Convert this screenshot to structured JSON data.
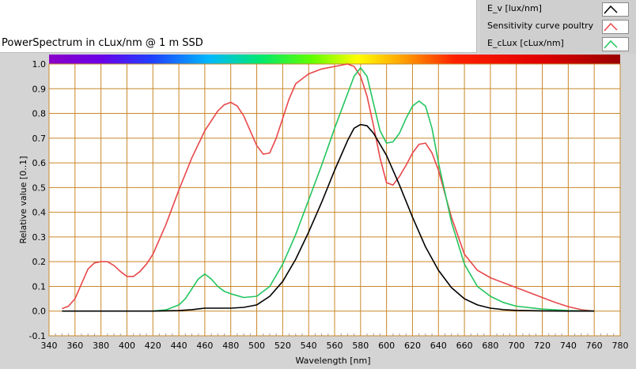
{
  "chart_data": {
    "type": "line",
    "title": "PowerSpectrum in cLux/nm @ 1 m SSD",
    "xlabel": "Wavelength [nm]",
    "ylabel": "Relative value [0..1]",
    "xlim": [
      340,
      780
    ],
    "ylim": [
      -0.1,
      1.0
    ],
    "grid": true,
    "legend_position": "top-right",
    "x_ticks": [
      "340",
      "360",
      "380",
      "400",
      "420",
      "440",
      "460",
      "480",
      "500",
      "520",
      "540",
      "560",
      "580",
      "600",
      "620",
      "640",
      "660",
      "680",
      "700",
      "720",
      "740",
      "760",
      "780"
    ],
    "y_ticks": [
      "-0.1",
      "0.0",
      "0.1",
      "0.2",
      "0.3",
      "0.4",
      "0.5",
      "0.6",
      "0.7",
      "0.8",
      "0.9",
      "1.0"
    ],
    "series": [
      {
        "name": "E_v [lux/nm]",
        "color": "#000000",
        "x": [
          350,
          360,
          380,
          400,
          420,
          440,
          450,
          460,
          470,
          480,
          490,
          500,
          510,
          520,
          530,
          540,
          550,
          560,
          570,
          575,
          580,
          585,
          590,
          600,
          610,
          620,
          630,
          640,
          650,
          660,
          670,
          680,
          690,
          700,
          720,
          740,
          760
        ],
        "y": [
          0.0,
          0.0,
          0.0,
          0.0,
          0.0,
          0.002,
          0.006,
          0.012,
          0.012,
          0.012,
          0.015,
          0.025,
          0.06,
          0.12,
          0.21,
          0.32,
          0.44,
          0.57,
          0.69,
          0.74,
          0.755,
          0.75,
          0.72,
          0.63,
          0.51,
          0.38,
          0.26,
          0.165,
          0.095,
          0.05,
          0.025,
          0.012,
          0.006,
          0.003,
          0.001,
          0.0,
          0.0
        ]
      },
      {
        "name": "Sensitivity curve poultry",
        "color": "#e8474a",
        "x": [
          350,
          355,
          360,
          365,
          370,
          375,
          380,
          385,
          390,
          395,
          400,
          405,
          410,
          415,
          420,
          430,
          440,
          450,
          460,
          470,
          475,
          480,
          485,
          490,
          495,
          500,
          505,
          510,
          515,
          520,
          525,
          530,
          540,
          550,
          560,
          570,
          575,
          580,
          585,
          590,
          595,
          600,
          605,
          610,
          615,
          620,
          625,
          630,
          635,
          640,
          650,
          660,
          670,
          680,
          690,
          700,
          710,
          720,
          730,
          740,
          750,
          760
        ],
        "y": [
          0.01,
          0.02,
          0.05,
          0.11,
          0.17,
          0.195,
          0.2,
          0.2,
          0.185,
          0.16,
          0.14,
          0.14,
          0.16,
          0.19,
          0.23,
          0.35,
          0.49,
          0.62,
          0.73,
          0.81,
          0.835,
          0.845,
          0.83,
          0.79,
          0.73,
          0.67,
          0.635,
          0.64,
          0.7,
          0.78,
          0.86,
          0.92,
          0.96,
          0.98,
          0.99,
          1.0,
          0.99,
          0.95,
          0.87,
          0.75,
          0.62,
          0.52,
          0.51,
          0.545,
          0.59,
          0.64,
          0.675,
          0.68,
          0.64,
          0.57,
          0.38,
          0.23,
          0.165,
          0.135,
          0.115,
          0.095,
          0.075,
          0.055,
          0.035,
          0.018,
          0.006,
          0.0
        ]
      },
      {
        "name": "E_cLux [cLux/nm]",
        "color": "#22c55e",
        "x": [
          420,
          430,
          440,
          445,
          450,
          455,
          460,
          465,
          470,
          475,
          480,
          490,
          500,
          510,
          520,
          530,
          540,
          550,
          560,
          570,
          575,
          580,
          585,
          590,
          595,
          600,
          605,
          610,
          615,
          620,
          625,
          630,
          635,
          640,
          650,
          660,
          670,
          680,
          690,
          700,
          720,
          740,
          760
        ],
        "y": [
          0.0,
          0.005,
          0.025,
          0.05,
          0.09,
          0.13,
          0.15,
          0.13,
          0.1,
          0.08,
          0.07,
          0.055,
          0.06,
          0.1,
          0.19,
          0.31,
          0.45,
          0.59,
          0.74,
          0.88,
          0.95,
          0.985,
          0.95,
          0.84,
          0.73,
          0.68,
          0.685,
          0.72,
          0.78,
          0.83,
          0.85,
          0.83,
          0.74,
          0.6,
          0.36,
          0.19,
          0.1,
          0.06,
          0.035,
          0.02,
          0.008,
          0.002,
          0.0
        ]
      }
    ]
  }
}
